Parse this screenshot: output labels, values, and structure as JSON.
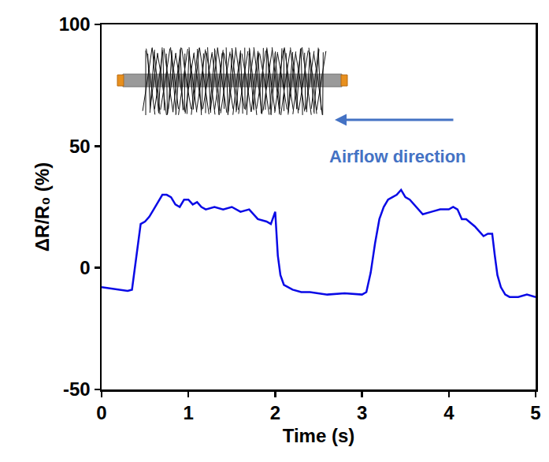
{
  "chart_data": {
    "type": "line",
    "x_label": "Time (s)",
    "y_label": "ΔR/R₀ (%)",
    "x": [
      0,
      0.1,
      0.2,
      0.3,
      0.35,
      0.4,
      0.45,
      0.5,
      0.55,
      0.6,
      0.65,
      0.7,
      0.75,
      0.8,
      0.85,
      0.9,
      0.95,
      1.0,
      1.05,
      1.1,
      1.15,
      1.2,
      1.3,
      1.4,
      1.5,
      1.6,
      1.7,
      1.8,
      1.9,
      1.95,
      2.0,
      2.03,
      2.06,
      2.1,
      2.2,
      2.3,
      2.4,
      2.6,
      2.8,
      3.0,
      3.05,
      3.1,
      3.15,
      3.2,
      3.25,
      3.3,
      3.35,
      3.4,
      3.45,
      3.5,
      3.55,
      3.6,
      3.7,
      3.8,
      3.9,
      4.0,
      4.05,
      4.1,
      4.15,
      4.2,
      4.3,
      4.35,
      4.4,
      4.45,
      4.5,
      4.53,
      4.56,
      4.6,
      4.65,
      4.7,
      4.8,
      4.9,
      5.0
    ],
    "values": [
      -8,
      -8.5,
      -9,
      -9.5,
      -9,
      5,
      18,
      19,
      21,
      24,
      27,
      30,
      30,
      29,
      26,
      25,
      28,
      28,
      26,
      27,
      25,
      24,
      25,
      24,
      25,
      23,
      24,
      20,
      19,
      18,
      23,
      5,
      -3,
      -7,
      -9,
      -10,
      -10,
      -11,
      -10.5,
      -11,
      -10,
      -2,
      10,
      20,
      25,
      28,
      29,
      30,
      32,
      29,
      28,
      26,
      22,
      23,
      24,
      24,
      25,
      24,
      20,
      20,
      17,
      15,
      13,
      14,
      14,
      5,
      -3,
      -8,
      -11,
      -12,
      -12,
      -11,
      -12
    ],
    "color": "#0a0ae6",
    "xlim": [
      0,
      5
    ],
    "xticks": [
      0,
      1,
      2,
      3,
      4,
      5
    ],
    "ylim": [
      -50,
      100
    ],
    "yticks": [
      -50,
      0,
      50,
      100
    ],
    "grid": false,
    "annotations": [
      {
        "text": "Airflow direction",
        "color": "#4472c4"
      }
    ]
  }
}
